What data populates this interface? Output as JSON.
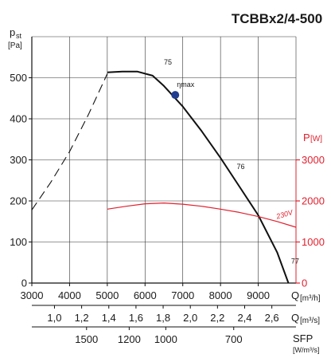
{
  "title": "TCBBx2/4-500",
  "chart_data": {
    "type": "line",
    "title": "TCBBx2/4-500",
    "y_left": {
      "label_main": "p",
      "label_sub": "st",
      "unit": "[Pa]",
      "ticks": [
        "0",
        "100",
        "200",
        "300",
        "400",
        "500"
      ],
      "range": [
        0,
        600
      ]
    },
    "y_right": {
      "label_main": "P",
      "unit": "[W]",
      "ticks": [
        "0",
        "1000",
        "2000",
        "3000"
      ],
      "range": [
        0,
        6000
      ],
      "color": "#e0202e"
    },
    "x_axes": [
      {
        "label_main": "Q",
        "unit": "[m³/h]",
        "ticks": [
          "3000",
          "4000",
          "5000",
          "6000",
          "7000",
          "8000",
          "9000"
        ],
        "range": [
          3000,
          10000
        ]
      },
      {
        "label_main": "Q",
        "unit": "[m³/s]",
        "ticks": [
          "1,0",
          "1,2",
          "1,4",
          "1,6",
          "1,8",
          "2,0",
          "2,2",
          "2,4",
          "2,6"
        ],
        "tick_values": [
          1.0,
          1.2,
          1.4,
          1.6,
          1.8,
          2.0,
          2.2,
          2.4,
          2.6
        ]
      },
      {
        "label_main": "SFP",
        "unit": "[W/m³/s]",
        "ticks": [
          "1500",
          "1200",
          "1000",
          "700"
        ],
        "tick_positions_m3h": [
          4450,
          5580,
          6550,
          8350
        ]
      }
    ],
    "series": [
      {
        "kind": "pressure-dashed",
        "style": "dashed",
        "x": [
          3000,
          3500,
          4000,
          4500,
          5000
        ],
        "y": [
          178,
          245,
          320,
          410,
          510
        ]
      },
      {
        "kind": "pressure-solid",
        "style": "solid",
        "x": [
          5000,
          5400,
          5800,
          6200,
          6500,
          7000,
          7500,
          8000,
          8500,
          9000,
          9500,
          9800
        ],
        "y": [
          513,
          515,
          515,
          505,
          480,
          430,
          370,
          305,
          235,
          165,
          75,
          0
        ]
      },
      {
        "name": "230V",
        "kind": "power",
        "axis": "right",
        "style": "solid",
        "color": "#e0202e",
        "x": [
          5000,
          5500,
          6000,
          6500,
          7000,
          7500,
          8000,
          8500,
          9000,
          9500,
          10000
        ],
        "y": [
          1800,
          1870,
          1930,
          1950,
          1920,
          1870,
          1800,
          1720,
          1620,
          1500,
          1360
        ]
      }
    ],
    "annotations": {
      "labels": [
        {
          "text": "75",
          "x": 6500,
          "y": 532
        },
        {
          "text": "76",
          "x": 8430,
          "y": 278
        },
        {
          "text": "77",
          "x": 9870,
          "y": 48
        },
        {
          "text": "230V",
          "x": 9500,
          "y": 1560,
          "axis": "right",
          "color": "#e0202e"
        }
      ],
      "eta_max": {
        "label": "ηmax",
        "x": 6800,
        "y": 458
      }
    },
    "grid": true
  }
}
